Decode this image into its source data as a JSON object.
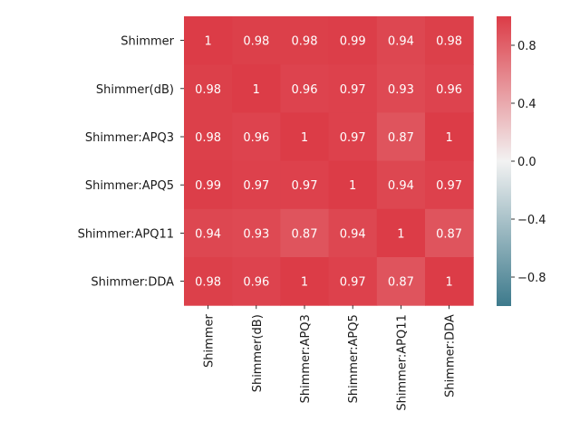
{
  "chart_data": {
    "type": "heatmap",
    "title": "",
    "xlabel": "",
    "ylabel": "",
    "rows": [
      "Shimmer",
      "Shimmer(dB)",
      "Shimmer:APQ3",
      "Shimmer:APQ5",
      "Shimmer:APQ11",
      "Shimmer:DDA"
    ],
    "columns": [
      "Shimmer",
      "Shimmer(dB)",
      "Shimmer:APQ3",
      "Shimmer:APQ5",
      "Shimmer:APQ11",
      "Shimmer:DDA"
    ],
    "values": [
      [
        1,
        0.98,
        0.98,
        0.99,
        0.94,
        0.98
      ],
      [
        0.98,
        1,
        0.96,
        0.97,
        0.93,
        0.96
      ],
      [
        0.98,
        0.96,
        1,
        0.97,
        0.87,
        1
      ],
      [
        0.99,
        0.97,
        0.97,
        1,
        0.94,
        0.97
      ],
      [
        0.94,
        0.93,
        0.87,
        0.94,
        1,
        0.87
      ],
      [
        0.98,
        0.96,
        1,
        0.97,
        0.87,
        1
      ]
    ],
    "annotations": [
      [
        "1",
        "0.98",
        "0.98",
        "0.99",
        "0.94",
        "0.98"
      ],
      [
        "0.98",
        "1",
        "0.96",
        "0.97",
        "0.93",
        "0.96"
      ],
      [
        "0.98",
        "0.96",
        "1",
        "0.97",
        "0.87",
        "1"
      ],
      [
        "0.99",
        "0.97",
        "0.97",
        "1",
        "0.94",
        "0.97"
      ],
      [
        "0.94",
        "0.93",
        "0.87",
        "0.94",
        "1",
        "0.87"
      ],
      [
        "0.98",
        "0.96",
        "1",
        "0.97",
        "0.87",
        "1"
      ]
    ],
    "colorbar": {
      "range": [
        -1,
        1
      ],
      "ticks": [
        0.8,
        0.4,
        0.0,
        -0.4,
        -0.8
      ],
      "tick_labels": [
        "0.8",
        "0.4",
        "0.0",
        "−0.4",
        "−0.8"
      ],
      "colors": {
        "low": "#3d7a8c",
        "mid": "#f2f2f2",
        "high": "#dc3c47"
      }
    },
    "legend": "right"
  }
}
